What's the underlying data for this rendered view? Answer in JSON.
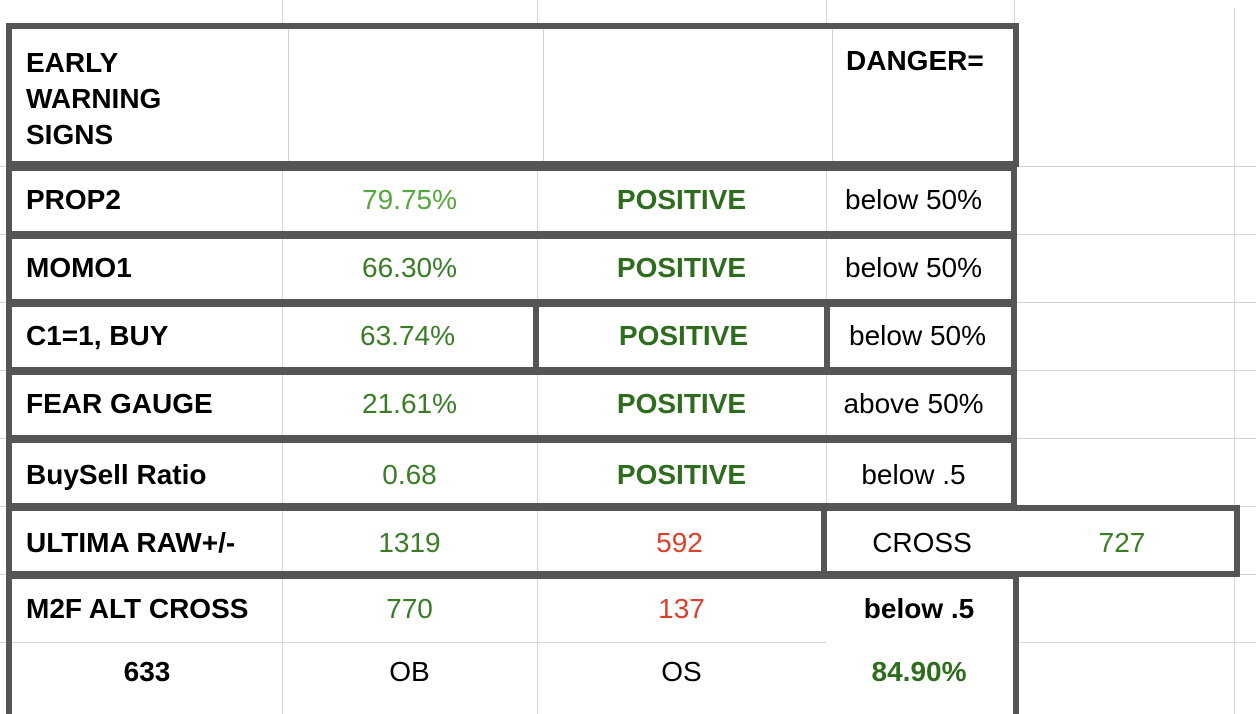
{
  "header": {
    "title_line1": "EARLY",
    "title_line2": "WARNING",
    "title_line3": "SIGNS",
    "danger_label": "DANGER="
  },
  "rows": [
    {
      "label": "PROP2",
      "value": "79.75%",
      "status": "POSITIVE",
      "danger": "below 50%"
    },
    {
      "label": "MOMO1",
      "value": "66.30%",
      "status": "POSITIVE",
      "danger": "below 50%"
    },
    {
      "label": "C1=1, BUY",
      "value": "63.74%",
      "status": "POSITIVE",
      "danger": "below 50%"
    },
    {
      "label": "FEAR GAUGE",
      "value": "21.61%",
      "status": "POSITIVE",
      "danger": "above 50%"
    },
    {
      "label": "BuySell Ratio",
      "value": "0.68",
      "status": "POSITIVE",
      "danger": "below .5"
    }
  ],
  "ultima": {
    "label": "ULTIMA RAW+/-",
    "value1": "1319",
    "value2": "592",
    "cross_label": "CROSS",
    "cross_value": "727"
  },
  "m2f": {
    "label": "M2F ALT CROSS",
    "value1": "770",
    "value2": "137",
    "danger": "below .5",
    "sub_value": "633",
    "ob_label": "OB",
    "os_label": "OS",
    "percent": "84.90%"
  },
  "colors": {
    "frame": "#555555",
    "gridline": "#d4d4d4",
    "green_light": "#56a83c",
    "green": "#3b7d27",
    "green_dark": "#2f6d1e",
    "red": "#d9412b"
  }
}
